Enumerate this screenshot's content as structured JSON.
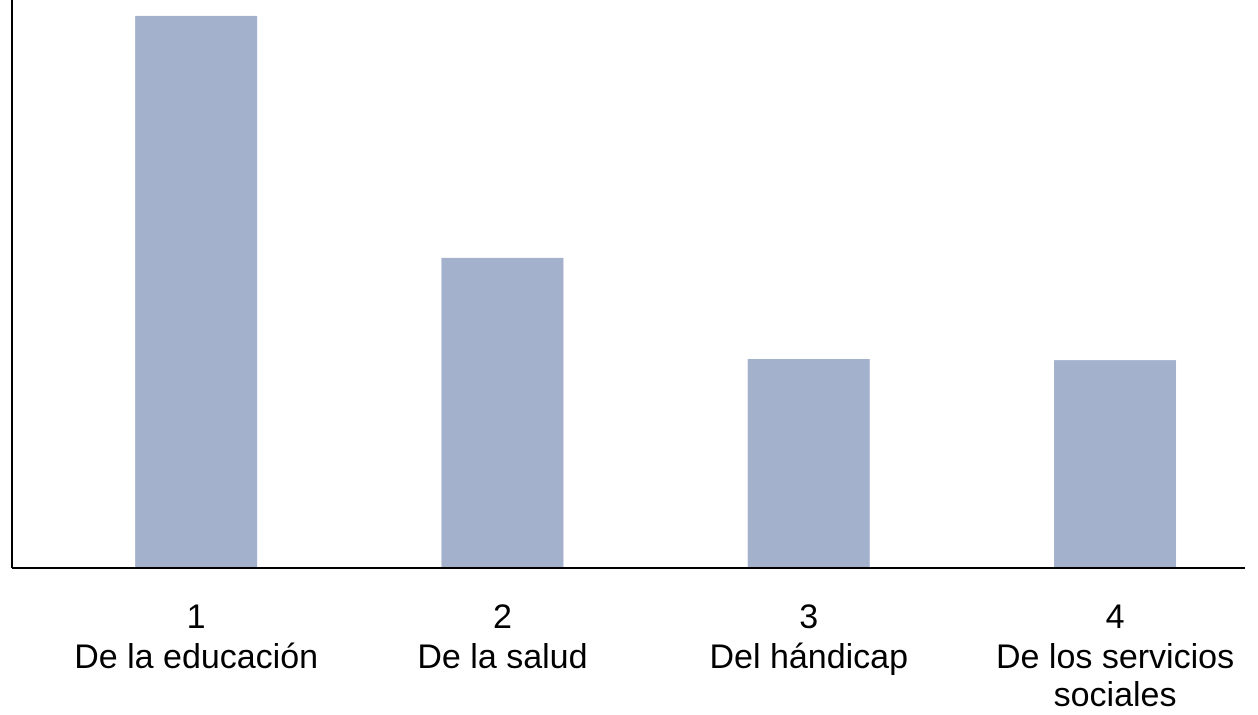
{
  "chart_data": {
    "type": "bar",
    "categories": [
      [
        1,
        "De la educación"
      ],
      [
        2,
        "De la salud"
      ],
      [
        3,
        "Del hándicap"
      ],
      [
        4,
        "De los servicios sociales"
      ]
    ],
    "values": [
      97.2,
      54.6,
      36.8,
      36.6
    ],
    "color": "#a3b1cd",
    "ylim": [
      0,
      100
    ]
  }
}
